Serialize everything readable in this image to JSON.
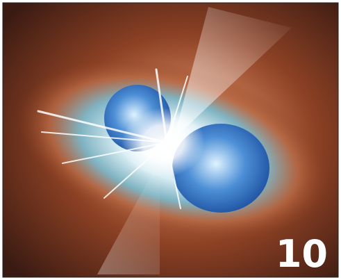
{
  "image": {
    "label": "10"
  }
}
